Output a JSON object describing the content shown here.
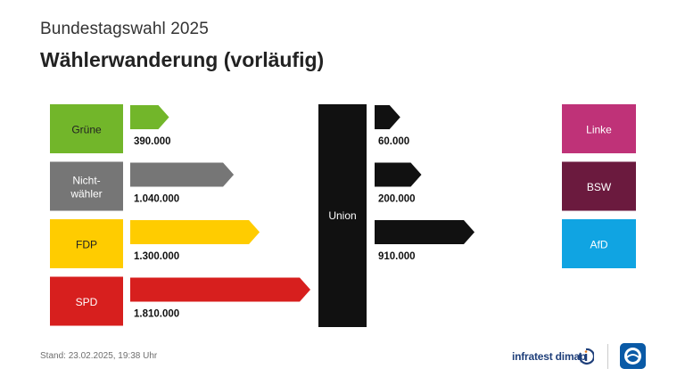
{
  "header": {
    "supertitle": "Bundestagswahl 2025",
    "title": "Wählerwanderung (vorläufig)"
  },
  "footer": {
    "stand_label": "Stand:",
    "stand_value": "23.02.2025, 19:38 Uhr",
    "brand": "infratest dimap"
  },
  "chart_data": {
    "type": "bar",
    "center_party": "Union",
    "center_color": "#111111",
    "inflows": [
      {
        "source": "Grüne",
        "value": 390000,
        "value_label": "390.000",
        "color": "#72b62a",
        "text_color": "#222222"
      },
      {
        "source": "Nicht-\nwähler",
        "value": 1040000,
        "value_label": "1.040.000",
        "color": "#767676",
        "text_color": "#ffffff"
      },
      {
        "source": "FDP",
        "value": 1300000,
        "value_label": "1.300.000",
        "color": "#ffcc00",
        "text_color": "#222222"
      },
      {
        "source": "SPD",
        "value": 1810000,
        "value_label": "1.810.000",
        "color": "#d71f1e",
        "text_color": "#ffffff"
      }
    ],
    "outflows": [
      {
        "target": "Linke",
        "value": 60000,
        "value_label": "60.000",
        "color": "#bf3278",
        "text_color": "#ffffff"
      },
      {
        "target": "BSW",
        "value": 200000,
        "value_label": "200.000",
        "color": "#6b1a3e",
        "text_color": "#ffffff"
      },
      {
        "target": "AfD",
        "value": 910000,
        "value_label": "910.000",
        "color": "#10a4e2",
        "text_color": "#ffffff"
      }
    ]
  }
}
